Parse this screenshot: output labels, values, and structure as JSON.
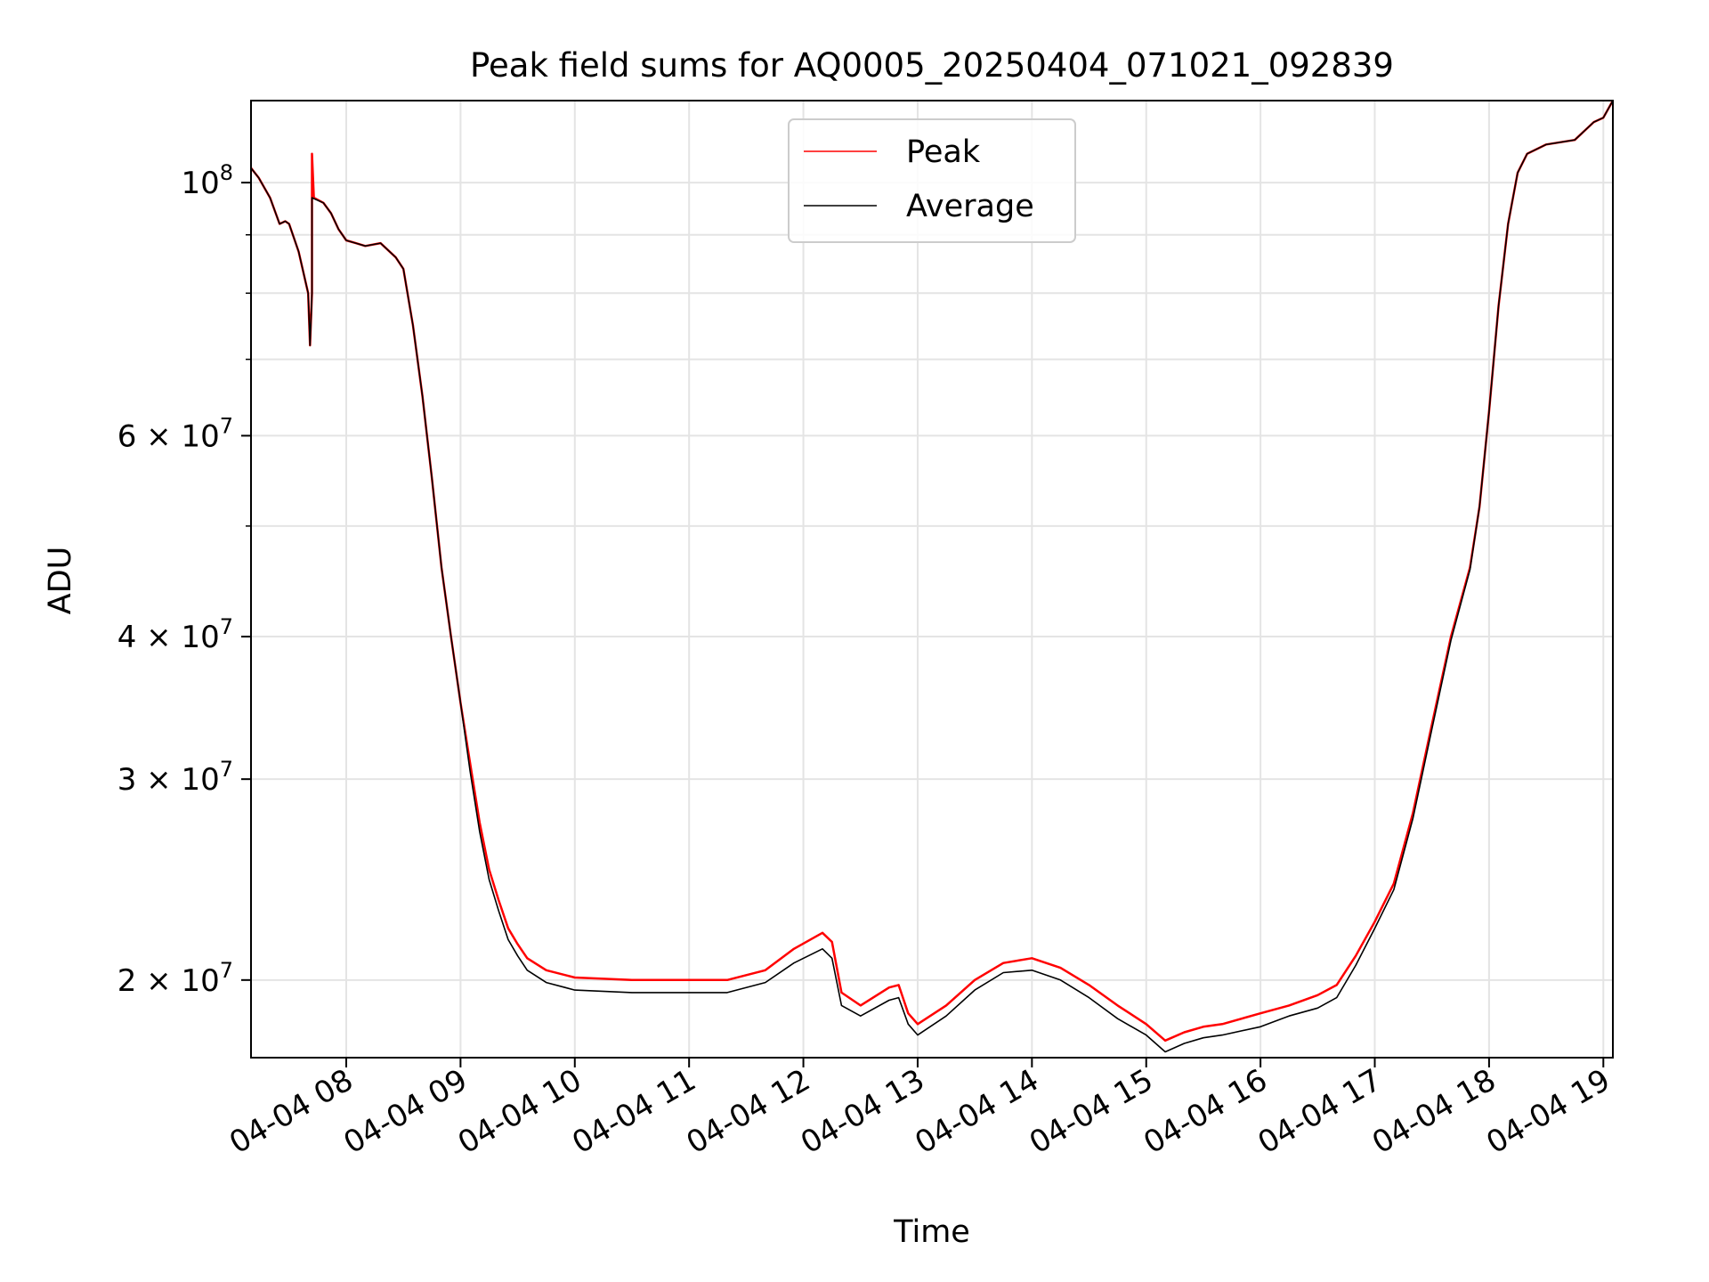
{
  "chart_data": {
    "type": "line",
    "title": "Peak field sums for AQ0005_20250404_071021_092839",
    "xlabel": "Time",
    "ylabel": "ADU",
    "y_scale": "log",
    "grid": true,
    "legend_position": "top-center",
    "xlim": [
      "2025-04-04 07:10",
      "2025-04-04 19:05"
    ],
    "ylim": [
      17100000,
      118000000
    ],
    "x_ticks": [
      {
        "value": "2025-04-04 08:00",
        "label": "04-04 08"
      },
      {
        "value": "2025-04-04 09:00",
        "label": "04-04 09"
      },
      {
        "value": "2025-04-04 10:00",
        "label": "04-04 10"
      },
      {
        "value": "2025-04-04 11:00",
        "label": "04-04 11"
      },
      {
        "value": "2025-04-04 12:00",
        "label": "04-04 12"
      },
      {
        "value": "2025-04-04 13:00",
        "label": "04-04 13"
      },
      {
        "value": "2025-04-04 14:00",
        "label": "04-04 14"
      },
      {
        "value": "2025-04-04 15:00",
        "label": "04-04 15"
      },
      {
        "value": "2025-04-04 16:00",
        "label": "04-04 16"
      },
      {
        "value": "2025-04-04 17:00",
        "label": "04-04 17"
      },
      {
        "value": "2025-04-04 18:00",
        "label": "04-04 18"
      },
      {
        "value": "2025-04-04 19:00",
        "label": "04-04 19"
      }
    ],
    "y_ticks": [
      {
        "value": 20000000,
        "mantissa": "2",
        "exp": "7"
      },
      {
        "value": 30000000,
        "mantissa": "3",
        "exp": "7"
      },
      {
        "value": 40000000,
        "mantissa": "4",
        "exp": "7"
      },
      {
        "value": 60000000,
        "mantissa": "6",
        "exp": "7"
      },
      {
        "value": 100000000,
        "mantissa": "",
        "exp": "8"
      }
    ],
    "y_minor_ticks": [
      50000000,
      70000000,
      80000000,
      90000000
    ],
    "series": [
      {
        "name": "Peak",
        "color": "#ff0000",
        "points": [
          [
            "2025-04-04 07:10",
            103000000
          ],
          [
            "2025-04-04 07:14",
            101000000
          ],
          [
            "2025-04-04 07:20",
            97000000
          ],
          [
            "2025-04-04 07:25",
            92000000
          ],
          [
            "2025-04-04 07:28",
            92500000
          ],
          [
            "2025-04-04 07:30",
            92000000
          ],
          [
            "2025-04-04 07:35",
            87000000
          ],
          [
            "2025-04-04 07:40",
            80000000
          ],
          [
            "2025-04-04 07:41",
            72000000
          ],
          [
            "2025-04-04 07:42",
            80000000
          ],
          [
            "2025-04-04 07:42",
            106000000
          ],
          [
            "2025-04-04 07:43",
            97000000
          ],
          [
            "2025-04-04 07:48",
            96000000
          ],
          [
            "2025-04-04 07:52",
            94000000
          ],
          [
            "2025-04-04 07:56",
            91000000
          ],
          [
            "2025-04-04 08:00",
            89000000
          ],
          [
            "2025-04-04 08:05",
            88500000
          ],
          [
            "2025-04-04 08:10",
            88000000
          ],
          [
            "2025-04-04 08:18",
            88500000
          ],
          [
            "2025-04-04 08:26",
            86000000
          ],
          [
            "2025-04-04 08:30",
            84000000
          ],
          [
            "2025-04-04 08:35",
            75000000
          ],
          [
            "2025-04-04 08:40",
            65000000
          ],
          [
            "2025-04-04 08:45",
            55000000
          ],
          [
            "2025-04-04 08:50",
            46000000
          ],
          [
            "2025-04-04 08:55",
            40000000
          ],
          [
            "2025-04-04 09:00",
            35000000
          ],
          [
            "2025-04-04 09:05",
            31000000
          ],
          [
            "2025-04-04 09:10",
            27500000
          ],
          [
            "2025-04-04 09:15",
            25000000
          ],
          [
            "2025-04-04 09:20",
            23500000
          ],
          [
            "2025-04-04 09:25",
            22200000
          ],
          [
            "2025-04-04 09:30",
            21500000
          ],
          [
            "2025-04-04 09:35",
            20900000
          ],
          [
            "2025-04-04 09:45",
            20400000
          ],
          [
            "2025-04-04 10:00",
            20100000
          ],
          [
            "2025-04-04 10:30",
            20000000
          ],
          [
            "2025-04-04 11:00",
            20000000
          ],
          [
            "2025-04-04 11:20",
            20000000
          ],
          [
            "2025-04-04 11:40",
            20400000
          ],
          [
            "2025-04-04 11:55",
            21300000
          ],
          [
            "2025-04-04 12:10",
            22000000
          ],
          [
            "2025-04-04 12:15",
            21600000
          ],
          [
            "2025-04-04 12:20",
            19500000
          ],
          [
            "2025-04-04 12:30",
            19000000
          ],
          [
            "2025-04-04 12:45",
            19700000
          ],
          [
            "2025-04-04 12:50",
            19800000
          ],
          [
            "2025-04-04 12:55",
            18700000
          ],
          [
            "2025-04-04 13:00",
            18300000
          ],
          [
            "2025-04-04 13:15",
            19000000
          ],
          [
            "2025-04-04 13:30",
            20000000
          ],
          [
            "2025-04-04 13:45",
            20700000
          ],
          [
            "2025-04-04 14:00",
            20900000
          ],
          [
            "2025-04-04 14:15",
            20500000
          ],
          [
            "2025-04-04 14:30",
            19800000
          ],
          [
            "2025-04-04 14:45",
            19000000
          ],
          [
            "2025-04-04 15:00",
            18300000
          ],
          [
            "2025-04-04 15:10",
            17700000
          ],
          [
            "2025-04-04 15:20",
            18000000
          ],
          [
            "2025-04-04 15:30",
            18200000
          ],
          [
            "2025-04-04 15:40",
            18300000
          ],
          [
            "2025-04-04 16:00",
            18700000
          ],
          [
            "2025-04-04 16:15",
            19000000
          ],
          [
            "2025-04-04 16:30",
            19400000
          ],
          [
            "2025-04-04 16:40",
            19800000
          ],
          [
            "2025-04-04 16:50",
            21000000
          ],
          [
            "2025-04-04 17:00",
            22500000
          ],
          [
            "2025-04-04 17:10",
            24300000
          ],
          [
            "2025-04-04 17:20",
            28000000
          ],
          [
            "2025-04-04 17:30",
            33500000
          ],
          [
            "2025-04-04 17:40",
            40000000
          ],
          [
            "2025-04-04 17:50",
            46000000
          ],
          [
            "2025-04-04 17:55",
            52000000
          ],
          [
            "2025-04-04 18:00",
            63000000
          ],
          [
            "2025-04-04 18:05",
            78000000
          ],
          [
            "2025-04-04 18:10",
            92000000
          ],
          [
            "2025-04-04 18:15",
            102000000
          ],
          [
            "2025-04-04 18:20",
            106000000
          ],
          [
            "2025-04-04 18:30",
            108000000
          ],
          [
            "2025-04-04 18:45",
            109000000
          ],
          [
            "2025-04-04 18:55",
            113000000
          ],
          [
            "2025-04-04 19:00",
            114000000
          ],
          [
            "2025-04-04 19:05",
            118000000
          ]
        ]
      },
      {
        "name": "Average",
        "color": "#000000",
        "points": [
          [
            "2025-04-04 07:10",
            103000000
          ],
          [
            "2025-04-04 07:14",
            101000000
          ],
          [
            "2025-04-04 07:20",
            97000000
          ],
          [
            "2025-04-04 07:25",
            92000000
          ],
          [
            "2025-04-04 07:28",
            92500000
          ],
          [
            "2025-04-04 07:30",
            92000000
          ],
          [
            "2025-04-04 07:35",
            87000000
          ],
          [
            "2025-04-04 07:40",
            80000000
          ],
          [
            "2025-04-04 07:41",
            72000000
          ],
          [
            "2025-04-04 07:42",
            80000000
          ],
          [
            "2025-04-04 07:42",
            97000000
          ],
          [
            "2025-04-04 07:48",
            96000000
          ],
          [
            "2025-04-04 07:52",
            94000000
          ],
          [
            "2025-04-04 07:56",
            91000000
          ],
          [
            "2025-04-04 08:00",
            89000000
          ],
          [
            "2025-04-04 08:05",
            88500000
          ],
          [
            "2025-04-04 08:10",
            88000000
          ],
          [
            "2025-04-04 08:18",
            88500000
          ],
          [
            "2025-04-04 08:26",
            86000000
          ],
          [
            "2025-04-04 08:30",
            84000000
          ],
          [
            "2025-04-04 08:35",
            75000000
          ],
          [
            "2025-04-04 08:40",
            65000000
          ],
          [
            "2025-04-04 08:45",
            55000000
          ],
          [
            "2025-04-04 08:50",
            46000000
          ],
          [
            "2025-04-04 08:55",
            40000000
          ],
          [
            "2025-04-04 09:00",
            35000000
          ],
          [
            "2025-04-04 09:05",
            30500000
          ],
          [
            "2025-04-04 09:10",
            27000000
          ],
          [
            "2025-04-04 09:15",
            24500000
          ],
          [
            "2025-04-04 09:20",
            23000000
          ],
          [
            "2025-04-04 09:25",
            21700000
          ],
          [
            "2025-04-04 09:30",
            21000000
          ],
          [
            "2025-04-04 09:35",
            20400000
          ],
          [
            "2025-04-04 09:45",
            19900000
          ],
          [
            "2025-04-04 10:00",
            19600000
          ],
          [
            "2025-04-04 10:30",
            19500000
          ],
          [
            "2025-04-04 11:00",
            19500000
          ],
          [
            "2025-04-04 11:20",
            19500000
          ],
          [
            "2025-04-04 11:40",
            19900000
          ],
          [
            "2025-04-04 11:55",
            20700000
          ],
          [
            "2025-04-04 12:10",
            21300000
          ],
          [
            "2025-04-04 12:15",
            20900000
          ],
          [
            "2025-04-04 12:20",
            19000000
          ],
          [
            "2025-04-04 12:30",
            18600000
          ],
          [
            "2025-04-04 12:45",
            19200000
          ],
          [
            "2025-04-04 12:50",
            19300000
          ],
          [
            "2025-04-04 12:55",
            18300000
          ],
          [
            "2025-04-04 13:00",
            17900000
          ],
          [
            "2025-04-04 13:15",
            18600000
          ],
          [
            "2025-04-04 13:30",
            19600000
          ],
          [
            "2025-04-04 13:45",
            20300000
          ],
          [
            "2025-04-04 14:00",
            20400000
          ],
          [
            "2025-04-04 14:15",
            20000000
          ],
          [
            "2025-04-04 14:30",
            19300000
          ],
          [
            "2025-04-04 14:45",
            18500000
          ],
          [
            "2025-04-04 15:00",
            17900000
          ],
          [
            "2025-04-04 15:10",
            17300000
          ],
          [
            "2025-04-04 15:20",
            17600000
          ],
          [
            "2025-04-04 15:30",
            17800000
          ],
          [
            "2025-04-04 15:40",
            17900000
          ],
          [
            "2025-04-04 16:00",
            18200000
          ],
          [
            "2025-04-04 16:15",
            18600000
          ],
          [
            "2025-04-04 16:30",
            18900000
          ],
          [
            "2025-04-04 16:40",
            19300000
          ],
          [
            "2025-04-04 16:50",
            20600000
          ],
          [
            "2025-04-04 17:00",
            22200000
          ],
          [
            "2025-04-04 17:10",
            24000000
          ],
          [
            "2025-04-04 17:20",
            27700000
          ],
          [
            "2025-04-04 17:30",
            33200000
          ],
          [
            "2025-04-04 17:40",
            39700000
          ],
          [
            "2025-04-04 17:50",
            45800000
          ],
          [
            "2025-04-04 17:55",
            52000000
          ],
          [
            "2025-04-04 18:00",
            63000000
          ],
          [
            "2025-04-04 18:05",
            78000000
          ],
          [
            "2025-04-04 18:10",
            92000000
          ],
          [
            "2025-04-04 18:15",
            102000000
          ],
          [
            "2025-04-04 18:20",
            106000000
          ],
          [
            "2025-04-04 18:30",
            108000000
          ],
          [
            "2025-04-04 18:45",
            109000000
          ],
          [
            "2025-04-04 18:55",
            113000000
          ],
          [
            "2025-04-04 19:00",
            114000000
          ],
          [
            "2025-04-04 19:05",
            118000000
          ]
        ]
      }
    ]
  }
}
